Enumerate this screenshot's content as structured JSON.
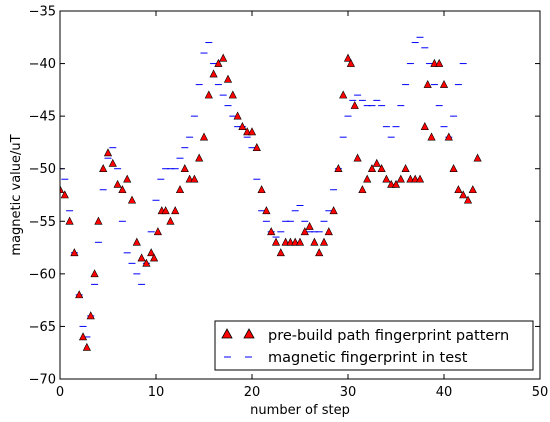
{
  "chart_data": {
    "type": "scatter",
    "title": "",
    "xlabel": "number of step",
    "ylabel": "magnetic value/uT",
    "xlim": [
      0,
      50
    ],
    "ylim": [
      -70,
      -35
    ],
    "xticks": [
      0,
      10,
      20,
      30,
      40,
      50
    ],
    "yticks": [
      -35,
      -40,
      -45,
      -50,
      -55,
      -60,
      -65,
      -70
    ],
    "grid": false,
    "legend_position": "lower-right",
    "series": [
      {
        "name": "pre-build path fingerprint pattern",
        "marker": "red-triangle",
        "color": "#ff0000",
        "edge_color": "#000000",
        "x": [
          0.0,
          0.5,
          1.0,
          1.5,
          2.0,
          2.4,
          2.8,
          3.2,
          3.6,
          4.0,
          4.5,
          5.0,
          5.5,
          6.0,
          6.5,
          7.0,
          7.5,
          8.0,
          8.5,
          9.0,
          9.5,
          9.8,
          10.2,
          10.6,
          11.0,
          11.5,
          12.0,
          12.5,
          13.0,
          13.5,
          14.0,
          14.5,
          15.0,
          15.5,
          16.0,
          16.5,
          17.0,
          17.5,
          18.0,
          18.5,
          19.0,
          19.5,
          20.0,
          20.5,
          21.0,
          21.5,
          22.0,
          22.5,
          23.0,
          23.5,
          24.0,
          24.5,
          25.0,
          25.5,
          26.0,
          26.5,
          27.0,
          27.5,
          28.0,
          28.5,
          29.0,
          29.5,
          30.0,
          30.3,
          30.7,
          31.0,
          31.5,
          32.0,
          32.5,
          33.0,
          33.5,
          34.0,
          34.5,
          35.0,
          35.5,
          36.0,
          36.5,
          37.0,
          37.5,
          38.0,
          38.3,
          38.7,
          39.0,
          39.5,
          40.0,
          40.5,
          41.0,
          41.5,
          42.0,
          42.5,
          43.0,
          43.5
        ],
        "y": [
          -52,
          -52.5,
          -55,
          -58,
          -62,
          -66,
          -67,
          -64,
          -60,
          -55,
          -50,
          -48.5,
          -49.5,
          -51.5,
          -52,
          -51,
          -53,
          -57,
          -58.5,
          -59,
          -58,
          -58.5,
          -56,
          -54,
          -54,
          -55,
          -54,
          -52,
          -50,
          -51,
          -51,
          -49,
          -47,
          -43,
          -41,
          -40,
          -39.5,
          -41.5,
          -43,
          -45,
          -46,
          -46.5,
          -46.5,
          -48,
          -52,
          -54,
          -56,
          -57,
          -58,
          -57,
          -57,
          -57,
          -57,
          -56,
          -55.5,
          -57,
          -58,
          -57,
          -56,
          -54,
          -50,
          -43,
          -39.5,
          -40,
          -44,
          -49,
          -52,
          -51,
          -50,
          -49.5,
          -50,
          -51,
          -51.5,
          -51.5,
          -51,
          -50,
          -51,
          -51,
          -51,
          -46,
          -42,
          -47,
          -40,
          -40,
          -42,
          -47,
          -50,
          -52,
          -52.5,
          -53,
          -52,
          -49
        ]
      },
      {
        "name": "magnetic fingerprint in test",
        "marker": "blue-dash",
        "color": "#0000ff",
        "x": [
          0.0,
          0.5,
          1.0,
          1.5,
          2.0,
          2.4,
          2.8,
          3.2,
          3.6,
          4.0,
          4.5,
          5.0,
          5.5,
          6.0,
          6.5,
          7.0,
          7.5,
          8.0,
          8.5,
          9.0,
          9.5,
          10.0,
          10.5,
          11.0,
          11.5,
          12.0,
          12.5,
          13.0,
          13.5,
          14.0,
          14.5,
          15.0,
          15.5,
          16.0,
          16.5,
          17.0,
          17.5,
          18.0,
          18.5,
          19.0,
          19.5,
          20.0,
          20.5,
          21.0,
          21.5,
          22.0,
          22.5,
          23.0,
          23.5,
          24.0,
          24.5,
          25.0,
          25.5,
          26.0,
          26.5,
          27.0,
          27.5,
          28.0,
          28.5,
          29.0,
          29.5,
          30.0,
          30.5,
          31.0,
          31.5,
          32.0,
          32.5,
          33.0,
          33.5,
          34.0,
          34.5,
          35.0,
          35.5,
          36.0,
          36.5,
          37.0,
          37.5,
          38.0,
          38.5,
          39.0,
          39.5,
          40.0,
          40.5,
          41.0,
          41.5,
          42.0
        ],
        "y": [
          -50,
          -51,
          -54,
          -58,
          -62,
          -65,
          -66,
          -64,
          -61,
          -57,
          -52,
          -49,
          -48,
          -50,
          -55,
          -58,
          -59,
          -60,
          -61,
          -59,
          -56,
          -53,
          -51,
          -50,
          -50,
          -50,
          -49,
          -48,
          -47,
          -45,
          -42,
          -39,
          -38,
          -40,
          -42,
          -43,
          -44,
          -45,
          -46,
          -46,
          -47,
          -48,
          -51,
          -54,
          -55,
          -56,
          -56.5,
          -56,
          -55,
          -55,
          -54,
          -53.5,
          -55,
          -56,
          -56,
          -56,
          -55,
          -54,
          -52,
          -50,
          -47,
          -45,
          -43.5,
          -43,
          -43.5,
          -44,
          -44,
          -43.5,
          -44,
          -46,
          -47,
          -46,
          -44,
          -42,
          -40,
          -38,
          -37.5,
          -38.5,
          -40,
          -42,
          -44,
          -46,
          -47,
          -45,
          -42,
          -40
        ]
      }
    ]
  }
}
